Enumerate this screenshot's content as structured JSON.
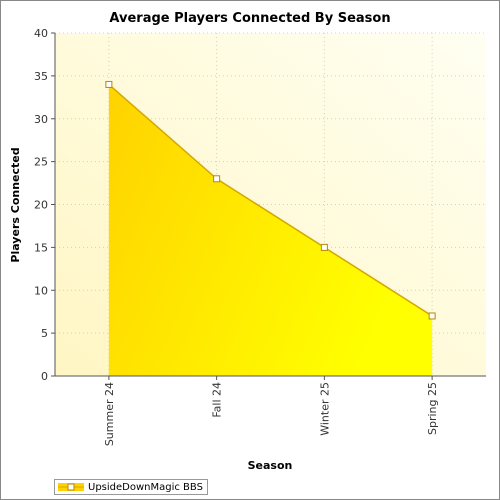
{
  "chart_data": {
    "type": "area",
    "title": "Average Players Connected By Season",
    "xlabel": "Season",
    "ylabel": "Players Connected",
    "categories": [
      "Summer 24",
      "Fall 24",
      "Winter 25",
      "Spring 25"
    ],
    "series": [
      {
        "name": "UpsideDownMagic BBS",
        "values": [
          34,
          23,
          15,
          7
        ]
      }
    ],
    "ylim": [
      0,
      40
    ],
    "yticks": [
      0,
      5,
      10,
      15,
      20,
      25,
      30,
      35,
      40
    ],
    "grid": true,
    "legend_position": "bottom-left",
    "colors": {
      "area": "#ffdd00",
      "line": "#d4a800",
      "background": "#fffde0"
    }
  }
}
